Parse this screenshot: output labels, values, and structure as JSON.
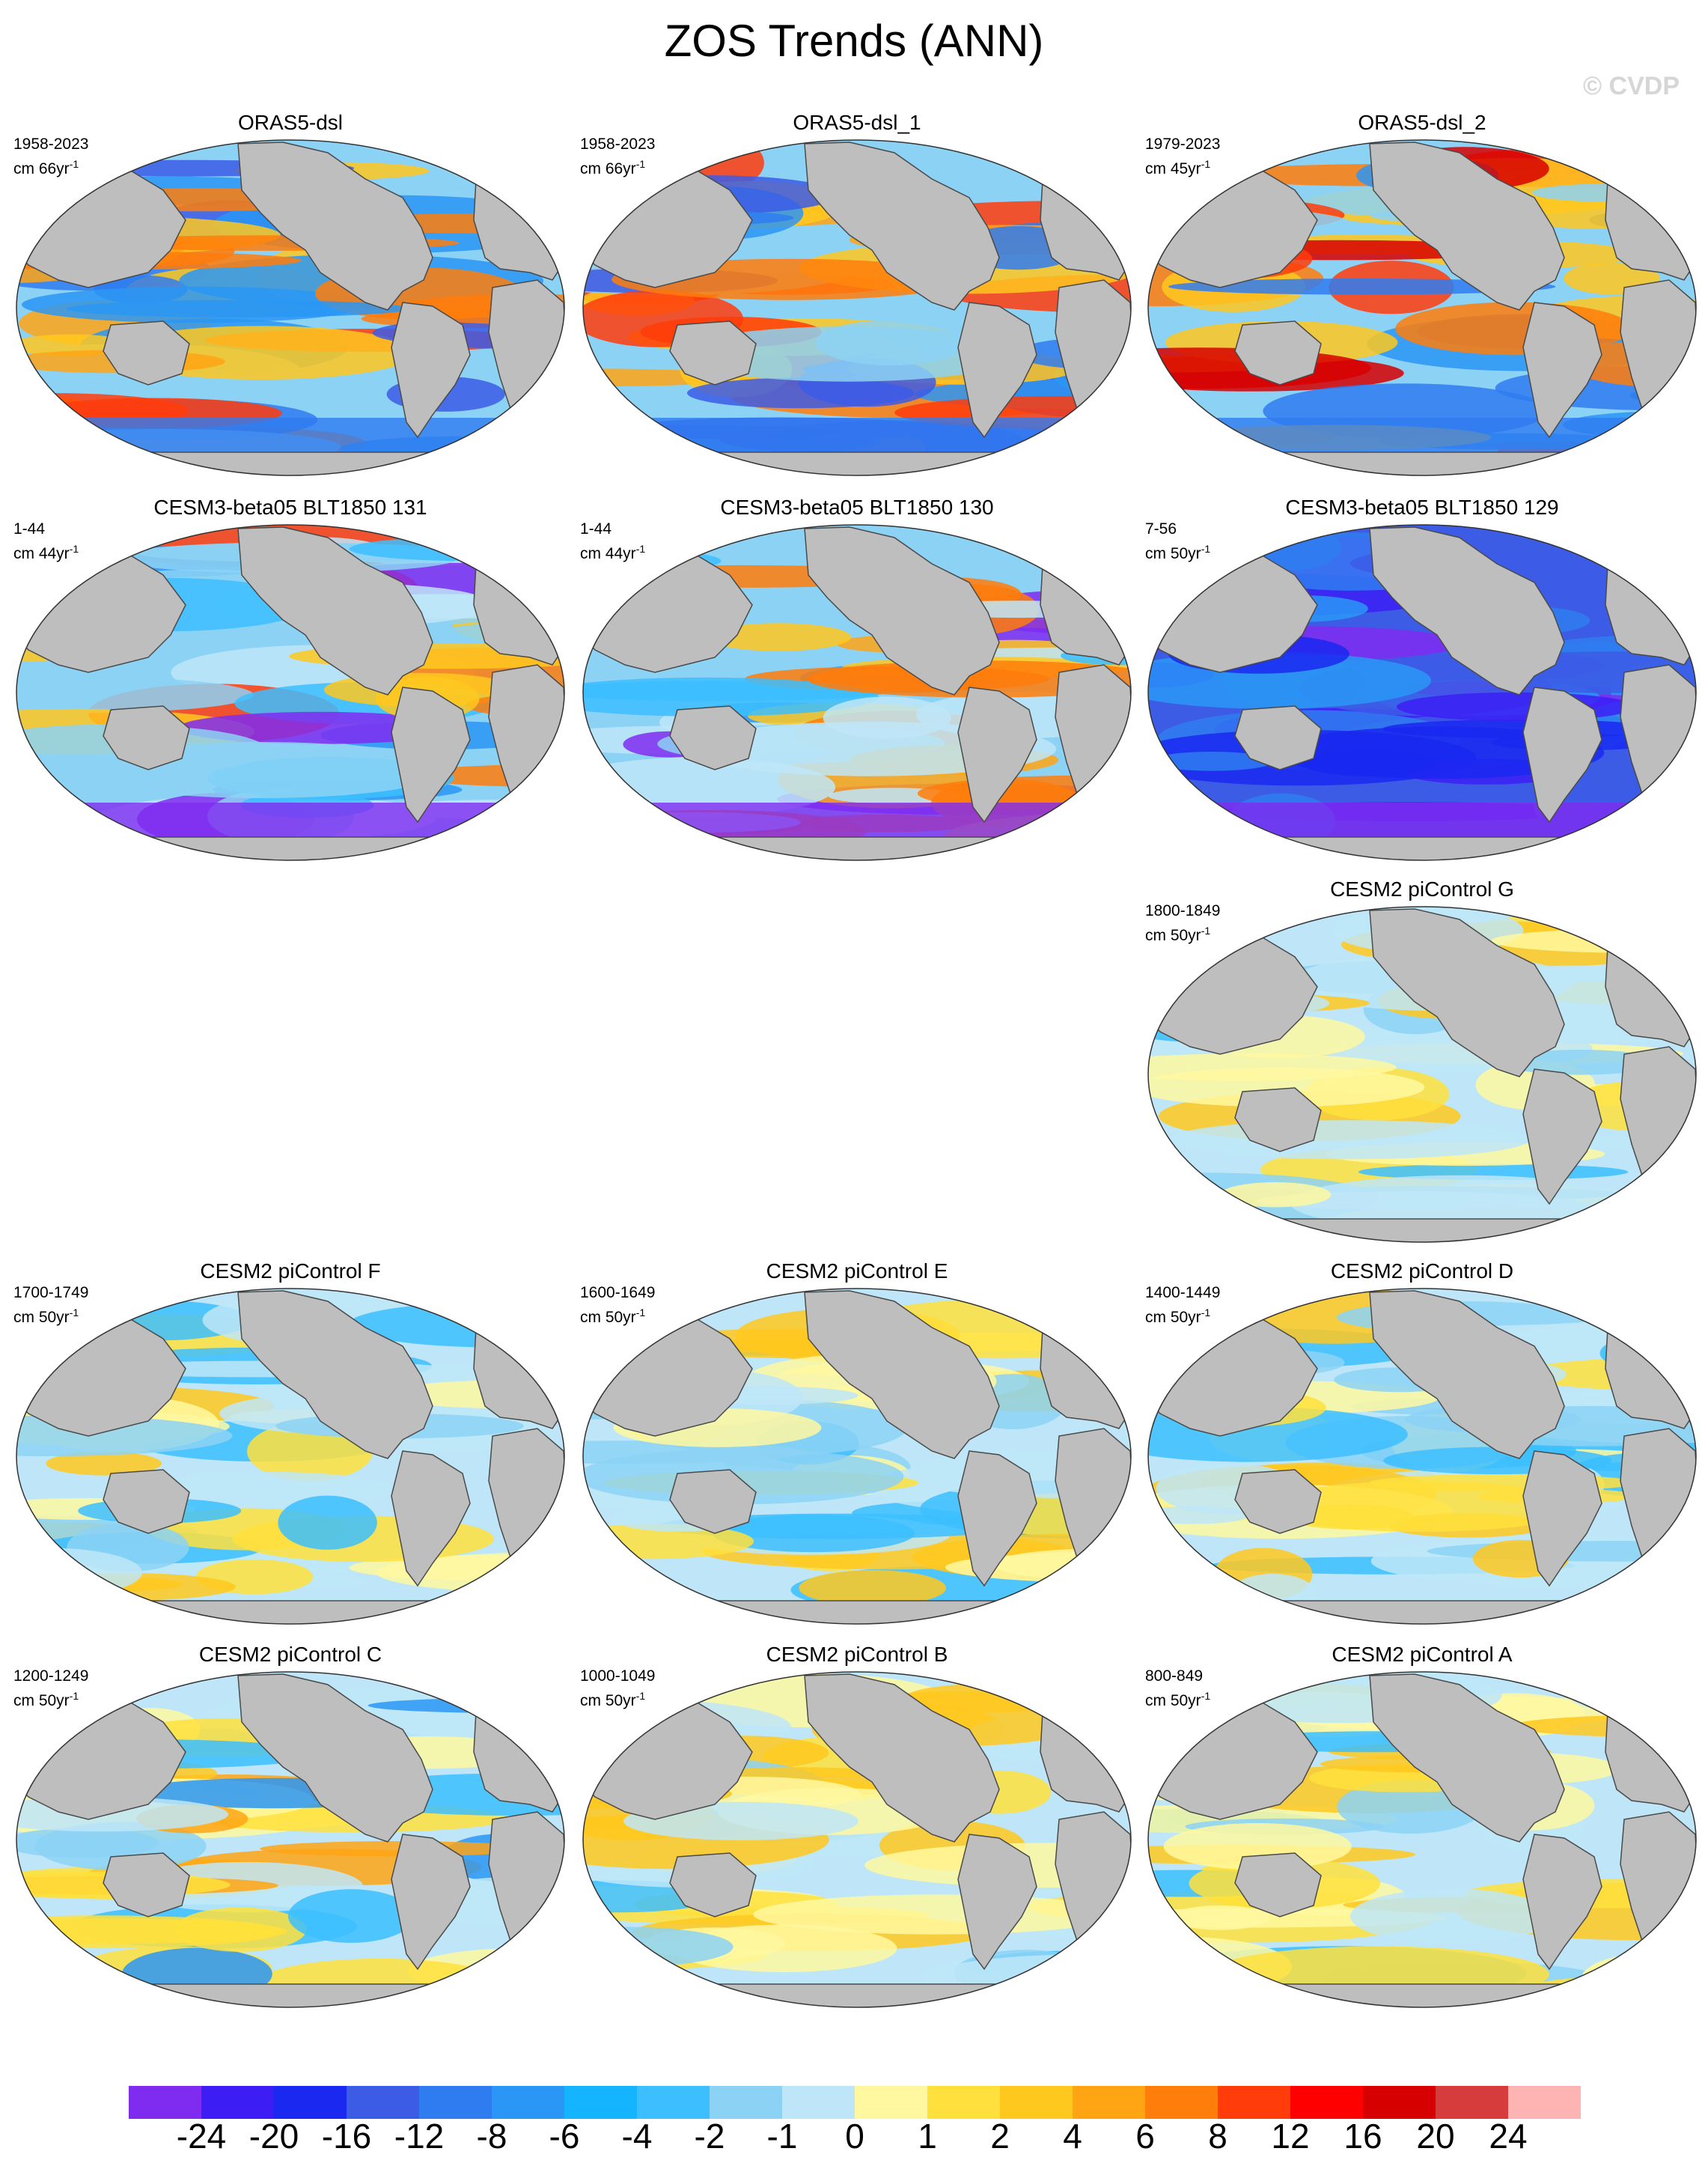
{
  "title": "ZOS Trends (ANN)",
  "watermark": "© CVDP",
  "panels": [
    {
      "title": "ORAS5-dsl",
      "period": "1958-2023",
      "units": "cm 66yr",
      "units_sup": "-1",
      "style": "oras1"
    },
    {
      "title": "ORAS5-dsl_1",
      "period": "1958-2023",
      "units": "cm 66yr",
      "units_sup": "-1",
      "style": "oras1"
    },
    {
      "title": "ORAS5-dsl_2",
      "period": "1979-2023",
      "units": "cm 45yr",
      "units_sup": "-1",
      "style": "oras2"
    },
    {
      "title": "CESM3-beta05 BLT1850 131",
      "period": "1-44",
      "units": "cm 44yr",
      "units_sup": "-1",
      "style": "cesm3a"
    },
    {
      "title": "CESM3-beta05 BLT1850 130",
      "period": "1-44",
      "units": "cm 44yr",
      "units_sup": "-1",
      "style": "cesm3b"
    },
    {
      "title": "CESM3-beta05 BLT1850 129",
      "period": "7-56",
      "units": "cm 50yr",
      "units_sup": "-1",
      "style": "cesm3c"
    },
    {
      "title": "CESM2 piControl G",
      "period": "1800-1849",
      "units": "cm 50yr",
      "units_sup": "-1",
      "style": "pic"
    },
    {
      "title": "CESM2 piControl F",
      "period": "1700-1749",
      "units": "cm 50yr",
      "units_sup": "-1",
      "style": "pic"
    },
    {
      "title": "CESM2 piControl E",
      "period": "1600-1649",
      "units": "cm 50yr",
      "units_sup": "-1",
      "style": "pic"
    },
    {
      "title": "CESM2 piControl D",
      "period": "1400-1449",
      "units": "cm 50yr",
      "units_sup": "-1",
      "style": "pic"
    },
    {
      "title": "CESM2 piControl C",
      "period": "1200-1249",
      "units": "cm 50yr",
      "units_sup": "-1",
      "style": "picw"
    },
    {
      "title": "CESM2 piControl B",
      "period": "1000-1049",
      "units": "cm 50yr",
      "units_sup": "-1",
      "style": "pic"
    },
    {
      "title": "CESM2 piControl A",
      "period": "800-849",
      "units": "cm 50yr",
      "units_sup": "-1",
      "style": "pic"
    }
  ],
  "colorbar": {
    "colors": [
      "#7f2cf0",
      "#3c1ef5",
      "#1a28f0",
      "#3c5ce6",
      "#2f7cf0",
      "#2a96f5",
      "#14b4ff",
      "#3cbeff",
      "#8cd2f5",
      "#bee6f8",
      "#fff8a0",
      "#ffe03c",
      "#ffc81e",
      "#ffa514",
      "#ff7d0a",
      "#ff3c0a",
      "#ff0000",
      "#d70000",
      "#d73c3c",
      "#ffb4b4"
    ],
    "labels": [
      "-24",
      "-20",
      "-16",
      "-12",
      "-8",
      "-6",
      "-4",
      "-2",
      "-1",
      "0",
      "1",
      "2",
      "4",
      "6",
      "8",
      "12",
      "16",
      "20",
      "24"
    ]
  }
}
